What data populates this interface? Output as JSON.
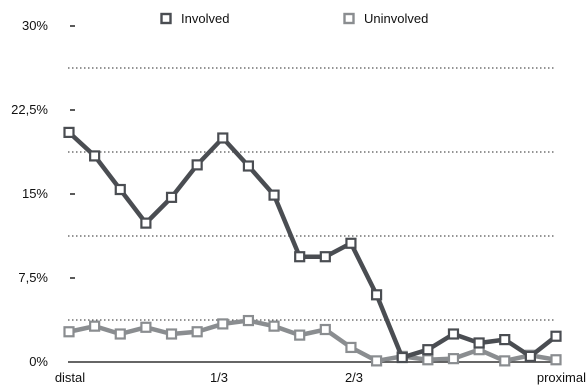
{
  "chart_data": {
    "type": "line",
    "x_tick_labels": [
      "distal",
      "1/3",
      "2/3",
      "proximal"
    ],
    "y_tick_labels": [
      "0%",
      "7,5%",
      "15%",
      "22,5%",
      "30%"
    ],
    "y_ticks": [
      0,
      7.5,
      15,
      22.5,
      30
    ],
    "ylim": [
      0,
      30
    ],
    "grid_lines_y": [
      3.75,
      11.25,
      18.75,
      26.25
    ],
    "legend_position": "top",
    "series": [
      {
        "name": "Involved",
        "color": "#4a4d52",
        "values": [
          20.5,
          18.4,
          15.4,
          12.4,
          14.7,
          17.6,
          20.0,
          17.5,
          14.9,
          9.4,
          9.4,
          10.6,
          6.0,
          0.4,
          1.1,
          2.5,
          1.7,
          2.0,
          0.5,
          2.3
        ]
      },
      {
        "name": "Uninvolved",
        "color": "#8a8d90",
        "values": [
          2.7,
          3.2,
          2.5,
          3.1,
          2.5,
          2.7,
          3.4,
          3.7,
          3.2,
          2.4,
          2.9,
          1.3,
          0.1,
          0.5,
          0.2,
          0.3,
          1.1,
          0.1,
          0.6,
          0.2
        ]
      }
    ]
  }
}
